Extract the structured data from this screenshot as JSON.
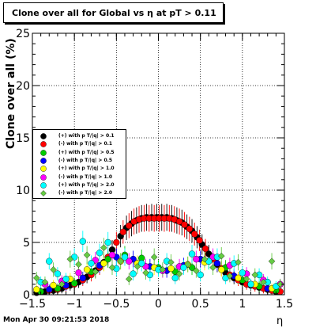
{
  "title": "Clone  over all for Global vs   η at pT > 0.11",
  "footer": "Mon Apr 30 09:21:53 2018",
  "chart_data": {
    "type": "scatter",
    "title": "Clone  over all for Global vs   η at pT > 0.11",
    "xlabel": "η",
    "ylabel": "Clone  over all (%)",
    "xlim": [
      -1.5,
      1.5
    ],
    "ylim": [
      0,
      25
    ],
    "xticks": [
      "−1.5",
      "−1",
      "−0.5",
      "0",
      "0.5",
      "1",
      "1.5"
    ],
    "yticks": [
      "0",
      "5",
      "10",
      "15",
      "20",
      "25"
    ],
    "grid": true,
    "legend_position": "left-middle",
    "series": [
      {
        "name": "(+) with p T/|q| > 0.1",
        "color": "#000000",
        "marker": "circle",
        "points": [
          [
            -1.45,
            0.2
          ],
          [
            -1.35,
            0.3
          ],
          [
            -1.25,
            0.4
          ],
          [
            -1.15,
            0.6
          ],
          [
            -1.05,
            0.9
          ],
          [
            -0.95,
            1.2
          ],
          [
            -0.85,
            1.7
          ],
          [
            -0.75,
            2.3
          ],
          [
            -0.65,
            3.1
          ],
          [
            -0.55,
            4.3
          ],
          [
            -0.45,
            5.6
          ],
          [
            -0.38,
            6.4
          ],
          [
            -0.32,
            6.8
          ],
          [
            -0.26,
            7.1
          ],
          [
            -0.2,
            7.3
          ],
          [
            -0.14,
            7.4
          ],
          [
            -0.08,
            7.4
          ],
          [
            -0.02,
            7.4
          ],
          [
            0.04,
            7.4
          ],
          [
            0.1,
            7.4
          ],
          [
            0.16,
            7.3
          ],
          [
            0.22,
            7.1
          ],
          [
            0.28,
            6.9
          ],
          [
            0.34,
            6.5
          ],
          [
            0.4,
            6.1
          ],
          [
            0.46,
            5.5
          ],
          [
            0.52,
            4.8
          ],
          [
            0.6,
            3.9
          ],
          [
            0.7,
            2.9
          ],
          [
            0.8,
            2.1
          ],
          [
            0.9,
            1.6
          ],
          [
            1.0,
            1.2
          ],
          [
            1.1,
            0.9
          ],
          [
            1.2,
            0.7
          ],
          [
            1.3,
            0.5
          ],
          [
            1.4,
            0.3
          ]
        ]
      },
      {
        "name": "(-) with p T/|q| > 0.1",
        "color": "#ff0000",
        "marker": "circle",
        "points": [
          [
            -1.4,
            0.3
          ],
          [
            -1.3,
            0.4
          ],
          [
            -1.2,
            0.5
          ],
          [
            -1.1,
            0.8
          ],
          [
            -1.0,
            1.0
          ],
          [
            -0.9,
            1.4
          ],
          [
            -0.8,
            1.9
          ],
          [
            -0.7,
            2.6
          ],
          [
            -0.6,
            3.6
          ],
          [
            -0.5,
            5.0
          ],
          [
            -0.42,
            6.0
          ],
          [
            -0.35,
            6.6
          ],
          [
            -0.29,
            7.0
          ],
          [
            -0.23,
            7.2
          ],
          [
            -0.17,
            7.3
          ],
          [
            -0.11,
            7.3
          ],
          [
            -0.05,
            7.3
          ],
          [
            0.01,
            7.3
          ],
          [
            0.07,
            7.3
          ],
          [
            0.13,
            7.3
          ],
          [
            0.19,
            7.2
          ],
          [
            0.25,
            7.0
          ],
          [
            0.31,
            6.7
          ],
          [
            0.37,
            6.3
          ],
          [
            0.43,
            5.8
          ],
          [
            0.49,
            5.2
          ],
          [
            0.56,
            4.4
          ],
          [
            0.65,
            3.4
          ],
          [
            0.75,
            2.5
          ],
          [
            0.85,
            1.9
          ],
          [
            0.95,
            1.4
          ],
          [
            1.05,
            1.0
          ],
          [
            1.15,
            0.8
          ],
          [
            1.25,
            0.6
          ],
          [
            1.35,
            0.4
          ],
          [
            1.45,
            0.3
          ]
        ]
      },
      {
        "name": "(+) with p T/|q| > 0.5",
        "color": "#00cc00",
        "marker": "circle",
        "points": [
          [
            -1.4,
            0.3
          ],
          [
            -1.2,
            0.6
          ],
          [
            -1.0,
            1.1
          ],
          [
            -0.8,
            2.2
          ],
          [
            -0.6,
            3.4
          ],
          [
            -0.4,
            3.8
          ],
          [
            -0.2,
            3.5
          ],
          [
            0.0,
            2.6
          ],
          [
            0.2,
            2.2
          ],
          [
            0.4,
            2.6
          ],
          [
            0.6,
            3.2
          ],
          [
            0.8,
            2.6
          ],
          [
            1.0,
            1.4
          ],
          [
            1.2,
            0.8
          ],
          [
            1.4,
            0.4
          ]
        ]
      },
      {
        "name": "(-) with p T/|q| > 0.5",
        "color": "#0000ff",
        "marker": "circle",
        "points": [
          [
            -1.3,
            0.5
          ],
          [
            -1.1,
            0.9
          ],
          [
            -0.9,
            1.6
          ],
          [
            -0.7,
            2.8
          ],
          [
            -0.5,
            3.6
          ],
          [
            -0.3,
            3.4
          ],
          [
            -0.1,
            2.7
          ],
          [
            0.1,
            2.3
          ],
          [
            0.3,
            2.8
          ],
          [
            0.5,
            3.4
          ],
          [
            0.7,
            3.0
          ],
          [
            0.9,
            1.8
          ],
          [
            1.1,
            1.0
          ],
          [
            1.3,
            0.6
          ]
        ]
      },
      {
        "name": "(+) with p T/|q| > 1.0",
        "color": "#ffff00",
        "marker": "circle",
        "points": [
          [
            -1.45,
            0.5
          ],
          [
            -1.25,
            0.9
          ],
          [
            -1.05,
            1.5
          ],
          [
            -0.85,
            2.4
          ],
          [
            -0.65,
            3.0
          ],
          [
            -0.45,
            3.2
          ],
          [
            -0.25,
            3.0
          ],
          [
            -0.05,
            2.6
          ],
          [
            0.15,
            2.5
          ],
          [
            0.35,
            2.9
          ],
          [
            0.55,
            3.1
          ],
          [
            0.75,
            2.4
          ],
          [
            0.95,
            1.6
          ],
          [
            1.15,
            1.0
          ],
          [
            1.35,
            0.6
          ]
        ]
      },
      {
        "name": "(-) with p T/|q| > 1.0",
        "color": "#ff00ff",
        "marker": "circle",
        "points": [
          [
            -1.35,
            1.0
          ],
          [
            -1.15,
            1.3
          ],
          [
            -0.95,
            2.1
          ],
          [
            -0.75,
            3.3
          ],
          [
            -0.55,
            3.8
          ],
          [
            -0.35,
            3.2
          ],
          [
            -0.15,
            2.7
          ],
          [
            0.05,
            2.3
          ],
          [
            0.25,
            2.7
          ],
          [
            0.45,
            3.4
          ],
          [
            0.65,
            3.6
          ],
          [
            0.85,
            2.8
          ],
          [
            1.05,
            2.0
          ],
          [
            1.25,
            1.4
          ],
          [
            1.45,
            1.0
          ]
        ]
      },
      {
        "name": "(+) with p T/|q| > 2.0",
        "color": "#00ffff",
        "marker": "circle",
        "points": [
          [
            -1.4,
            1.2
          ],
          [
            -1.3,
            3.2
          ],
          [
            -1.2,
            2.0
          ],
          [
            -1.1,
            1.5
          ],
          [
            -1.0,
            3.6
          ],
          [
            -0.9,
            5.1
          ],
          [
            -0.8,
            3.0
          ],
          [
            -0.7,
            4.0
          ],
          [
            -0.6,
            5.0
          ],
          [
            -0.5,
            2.5
          ],
          [
            -0.4,
            3.6
          ],
          [
            -0.3,
            2.0
          ],
          [
            -0.2,
            3.0
          ],
          [
            -0.1,
            1.9
          ],
          [
            0.0,
            2.4
          ],
          [
            0.1,
            3.2
          ],
          [
            0.2,
            1.6
          ],
          [
            0.3,
            2.6
          ],
          [
            0.4,
            3.9
          ],
          [
            0.5,
            1.9
          ],
          [
            0.6,
            3.2
          ],
          [
            0.7,
            3.6
          ],
          [
            0.8,
            1.6
          ],
          [
            0.9,
            3.0
          ],
          [
            1.0,
            2.1
          ],
          [
            1.1,
            1.0
          ],
          [
            1.2,
            1.9
          ],
          [
            1.3,
            1.2
          ],
          [
            1.4,
            0.8
          ]
        ]
      },
      {
        "name": "(-) with p T/|q| > 2.0",
        "color": "#66cc44",
        "marker": "diamond",
        "points": [
          [
            -1.45,
            1.6
          ],
          [
            -1.35,
            1.2
          ],
          [
            -1.25,
            2.4
          ],
          [
            -1.15,
            1.0
          ],
          [
            -1.05,
            3.4
          ],
          [
            -0.95,
            2.9
          ],
          [
            -0.85,
            3.8
          ],
          [
            -0.75,
            2.2
          ],
          [
            -0.65,
            4.5
          ],
          [
            -0.55,
            2.6
          ],
          [
            -0.45,
            3.2
          ],
          [
            -0.35,
            1.5
          ],
          [
            -0.25,
            2.7
          ],
          [
            -0.15,
            2.1
          ],
          [
            -0.05,
            3.6
          ],
          [
            0.05,
            2.4
          ],
          [
            0.15,
            3.1
          ],
          [
            0.25,
            2.0
          ],
          [
            0.35,
            2.9
          ],
          [
            0.45,
            2.3
          ],
          [
            0.55,
            3.4
          ],
          [
            0.65,
            2.6
          ],
          [
            0.75,
            3.7
          ],
          [
            0.85,
            1.8
          ],
          [
            0.95,
            3.1
          ],
          [
            1.05,
            1.5
          ],
          [
            1.15,
            1.9
          ],
          [
            1.25,
            1.2
          ],
          [
            1.35,
            3.2
          ],
          [
            1.45,
            1.0
          ]
        ]
      }
    ]
  }
}
